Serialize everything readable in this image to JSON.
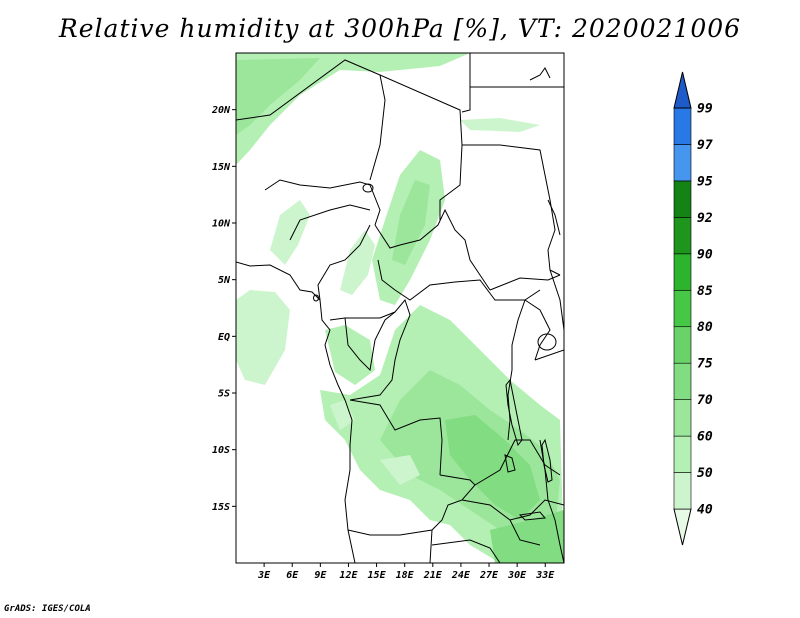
{
  "title": "Relative humidity at 300hPa [%], VT: 2020021006",
  "credit": "GrADS: IGES/COLA",
  "map": {
    "lat_ticks": [
      "20N",
      "15N",
      "10N",
      "5N",
      "EQ",
      "5S",
      "10S",
      "15S"
    ],
    "lat_values": [
      20,
      15,
      10,
      5,
      0,
      -5,
      -10,
      -15
    ],
    "lon_ticks": [
      "3E",
      "6E",
      "9E",
      "12E",
      "15E",
      "18E",
      "21E",
      "24E",
      "27E",
      "30E",
      "33E"
    ],
    "lon_values": [
      3,
      6,
      9,
      12,
      15,
      18,
      21,
      24,
      27,
      30,
      33
    ],
    "lon_range": [
      0,
      35
    ],
    "lat_range": [
      -20,
      25
    ]
  },
  "colorbar": {
    "levels": [
      "40",
      "50",
      "60",
      "70",
      "75",
      "80",
      "85",
      "90",
      "92",
      "95",
      "97",
      "99"
    ],
    "colors": [
      "#e6fae6",
      "#cdf5cd",
      "#b4f0b4",
      "#9be69b",
      "#82dc82",
      "#69d269",
      "#46c846",
      "#2db42d",
      "#1e961e",
      "#148214",
      "#4696f0",
      "#2878e6",
      "#1e5ac8"
    ]
  }
}
